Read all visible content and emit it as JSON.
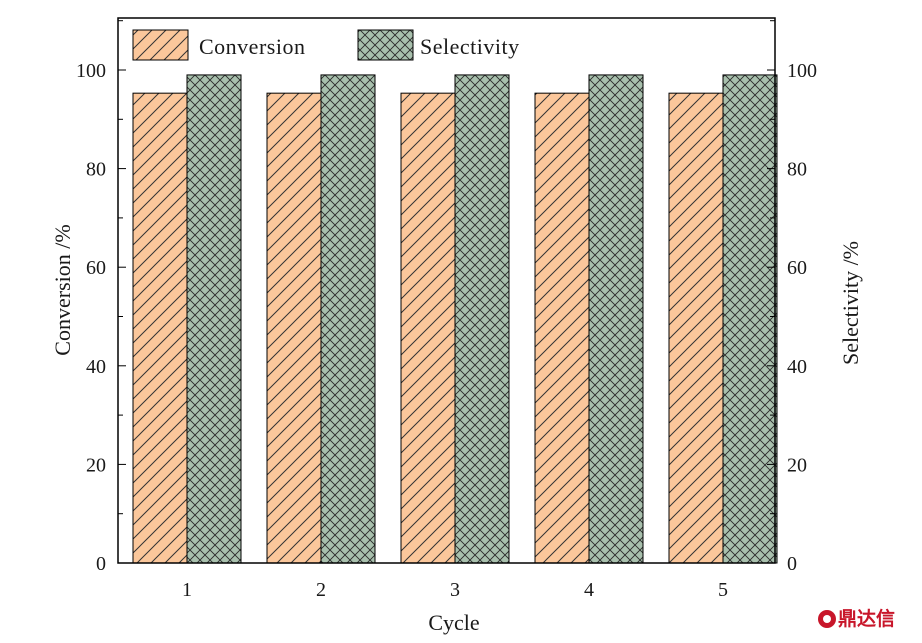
{
  "chart_data": {
    "type": "bar",
    "categories": [
      "1",
      "2",
      "3",
      "4",
      "5"
    ],
    "series": [
      {
        "name": "Conversion",
        "values": [
          95.3,
          95.3,
          95.3,
          95.3,
          95.3
        ],
        "color": "#fbc79b",
        "pattern": "diagonal-hatch"
      },
      {
        "name": "Selectivity",
        "values": [
          99.0,
          99.0,
          99.0,
          99.0,
          99.0
        ],
        "color": "#a8c0ad",
        "pattern": "crosshatch"
      }
    ],
    "xlabel": "Cycle",
    "ylabel_left": "Conversion /%",
    "ylabel_right": "Selectivity /%",
    "ylim": [
      0,
      100
    ],
    "yticks": [
      "0",
      "20",
      "40",
      "60",
      "80",
      "100"
    ],
    "legend_position": "top-left",
    "grid": false
  },
  "watermark": {
    "text": "鼎达信"
  }
}
